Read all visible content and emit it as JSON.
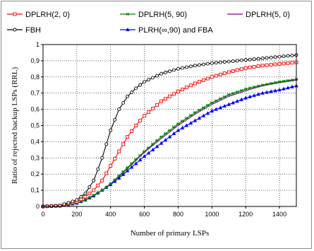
{
  "chart_data": {
    "type": "line",
    "title": "",
    "xlabel": "Number of primary LSPs",
    "ylabel": "Ratio of rejected backup LSPs (RRL)",
    "xlim": [
      0,
      1500
    ],
    "ylim": [
      0,
      1
    ],
    "xticks": [
      0,
      200,
      400,
      600,
      800,
      1000,
      1200,
      1400
    ],
    "yticks": [
      0,
      0.1,
      0.2,
      0.3,
      0.4,
      0.5,
      0.6,
      0.7,
      0.8,
      0.9,
      1
    ],
    "ytick_labels": [
      "0",
      "0,1",
      "0,2",
      "0,3",
      "0,4",
      "0,5",
      "0,6",
      "0,7",
      "0,8",
      "0,9",
      "1"
    ],
    "grid": true,
    "legend_position": "top",
    "x": [
      0,
      100,
      200,
      250,
      300,
      350,
      400,
      450,
      500,
      550,
      600,
      700,
      800,
      900,
      1000,
      1100,
      1200,
      1300,
      1400,
      1500
    ],
    "series": [
      {
        "name": "DPLRH(2, 0)",
        "color": "#ff0000",
        "marker": "square-open",
        "values": [
          0,
          0.005,
          0.03,
          0.06,
          0.1,
          0.16,
          0.25,
          0.34,
          0.43,
          0.5,
          0.56,
          0.65,
          0.71,
          0.76,
          0.8,
          0.83,
          0.855,
          0.87,
          0.88,
          0.89
        ]
      },
      {
        "name": "DPLRH(5, 90)",
        "color": "#008000",
        "marker": "star",
        "values": [
          0,
          0.003,
          0.02,
          0.04,
          0.07,
          0.1,
          0.14,
          0.19,
          0.24,
          0.29,
          0.34,
          0.43,
          0.51,
          0.58,
          0.64,
          0.69,
          0.725,
          0.75,
          0.77,
          0.785
        ]
      },
      {
        "name": "DPLRH(5, 0)",
        "color": "#800080",
        "marker": "none",
        "values": [
          0,
          0.003,
          0.02,
          0.04,
          0.065,
          0.1,
          0.14,
          0.185,
          0.235,
          0.285,
          0.335,
          0.42,
          0.5,
          0.57,
          0.63,
          0.68,
          0.715,
          0.745,
          0.765,
          0.78
        ]
      },
      {
        "name": "FBH",
        "color": "#000000",
        "marker": "circle-open",
        "values": [
          0,
          0.005,
          0.04,
          0.08,
          0.16,
          0.3,
          0.47,
          0.6,
          0.68,
          0.73,
          0.77,
          0.82,
          0.85,
          0.87,
          0.885,
          0.895,
          0.905,
          0.915,
          0.925,
          0.935
        ]
      },
      {
        "name": "PLRH(∞,90) and FBA",
        "color": "#0000ff",
        "marker": "triangle",
        "values": [
          0,
          0.003,
          0.02,
          0.04,
          0.065,
          0.1,
          0.135,
          0.175,
          0.22,
          0.265,
          0.31,
          0.39,
          0.47,
          0.53,
          0.59,
          0.63,
          0.67,
          0.7,
          0.72,
          0.745
        ]
      }
    ]
  }
}
